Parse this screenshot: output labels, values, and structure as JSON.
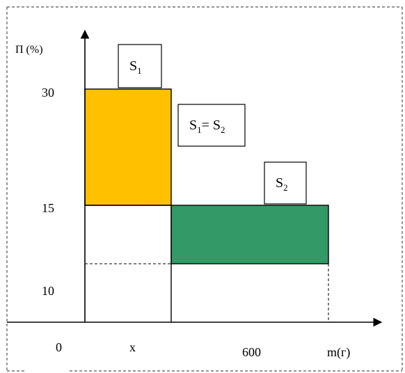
{
  "y_axis_label": "П (%)",
  "x_axis_label": "m(г)",
  "ticks": {
    "y30": "30",
    "y15": "15",
    "y10": "10",
    "origin": "0",
    "x_mid": "x",
    "x_600": "600"
  },
  "s1_label": {
    "base": "S",
    "sub": "1"
  },
  "s2_label": {
    "base": "S",
    "sub": "2"
  },
  "equality_label": {
    "left_base": "S",
    "left_sub": "1",
    "eq": "= ",
    "right_base": "S",
    "right_sub": "2"
  },
  "colors": {
    "s1_fill": "#FFC000",
    "s2_fill": "#339966",
    "line": "#000000",
    "frame": "#555555"
  }
}
